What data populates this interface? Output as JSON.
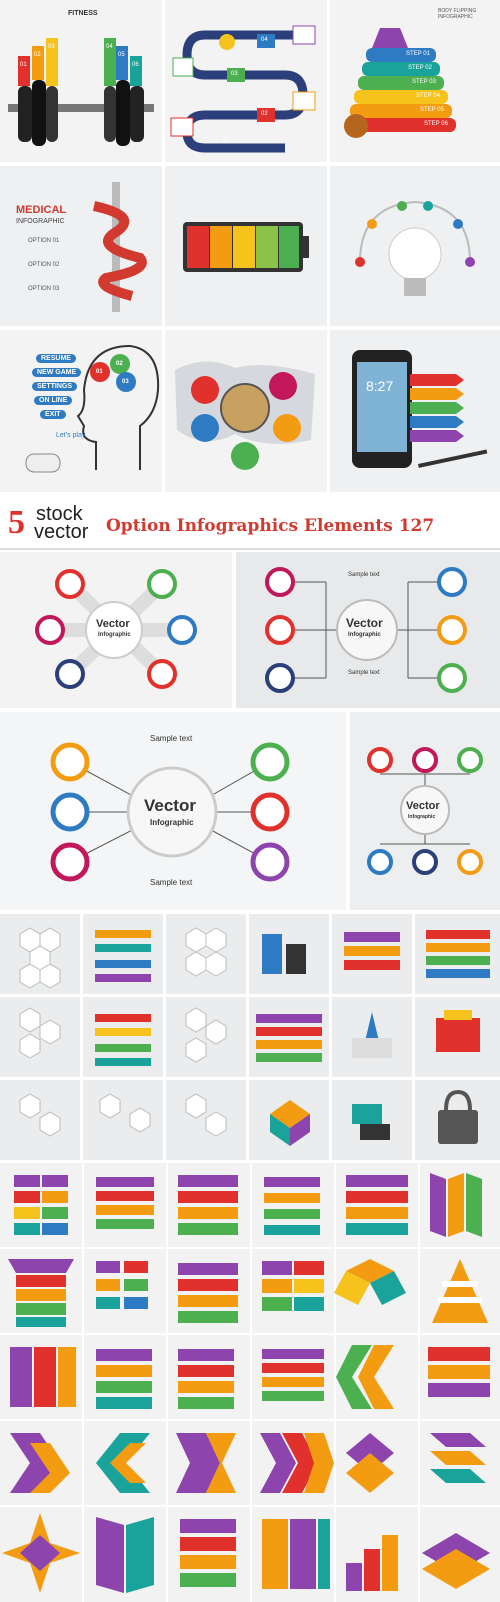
{
  "top_grid": {
    "fitness": {
      "title": "FITNESS",
      "labels": [
        "01",
        "02",
        "03",
        "04",
        "05",
        "06"
      ]
    },
    "book": {
      "labels": [
        "01",
        "02",
        "03",
        "04"
      ]
    },
    "steps": {
      "title": "BODY FLIPPING INFOGRAPHIC",
      "labels": [
        "STEP 01",
        "STEP 02",
        "STEP 03",
        "STEP 04",
        "STEP 05",
        "STEP 06"
      ]
    },
    "medical": {
      "title": "MEDICAL",
      "subtitle": "INFOGRAPHIC",
      "options": [
        "OPTION 01",
        "OPTION 02",
        "OPTION 03"
      ]
    },
    "head": {
      "menu": [
        "RESUME",
        "NEW GAME",
        "SETTINGS",
        "ON LINE",
        "EXIT"
      ],
      "bubble": [
        "01",
        "02",
        "03"
      ],
      "play": "Let's play"
    },
    "phone": {
      "time": "8:27"
    }
  },
  "banner": {
    "brand_number": "5",
    "brand_word1": "stock",
    "brand_word2": "vector",
    "title": "Option Infographics Elements 127"
  },
  "vector_panels": {
    "center_title": "Vector",
    "center_subtitle": "Infographic",
    "sample_text": "Sample text"
  },
  "colors": {
    "red": "#e0312c",
    "orange": "#f39c12",
    "yellow": "#f6c21c",
    "green": "#4caf50",
    "teal": "#1aa39a",
    "blue": "#2e7bc4",
    "purple": "#8e44ad",
    "magenta": "#c2185b"
  }
}
